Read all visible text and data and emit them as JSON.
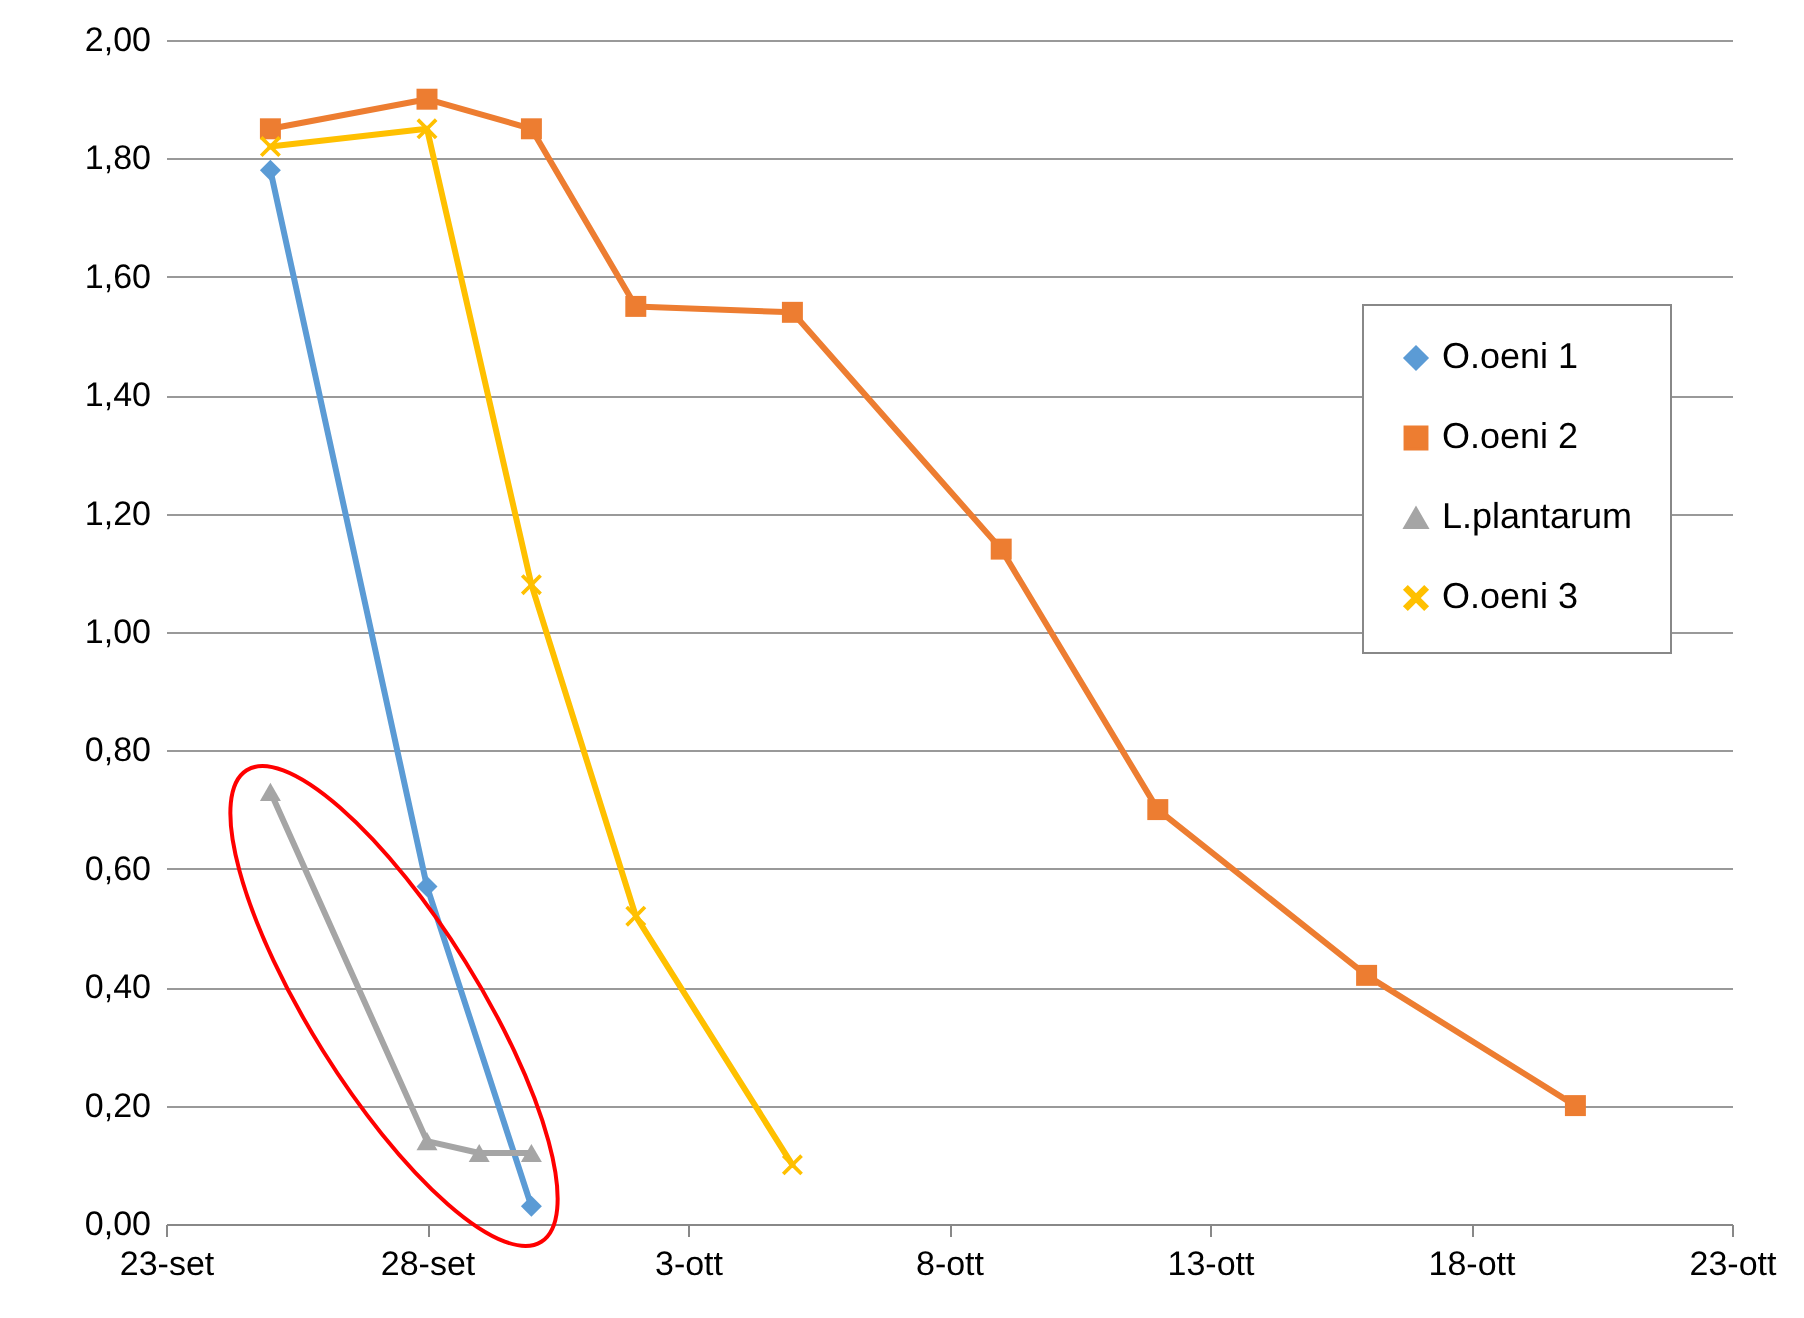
{
  "chart_data": {
    "type": "line",
    "xlim": [
      "--09-23",
      "--10-23"
    ],
    "xticks": [
      {
        "value": "--09-23",
        "label": "23-set"
      },
      {
        "value": "--09-28",
        "label": "28-set"
      },
      {
        "value": "--10-03",
        "label": "3-ott"
      },
      {
        "value": "--10-08",
        "label": "8-ott"
      },
      {
        "value": "--10-13",
        "label": "13-ott"
      },
      {
        "value": "--10-18",
        "label": "18-ott"
      },
      {
        "value": "--10-23",
        "label": "23-ott"
      }
    ],
    "ylim": [
      0,
      2
    ],
    "yticks": [
      {
        "value": 0,
        "label": "0,00"
      },
      {
        "value": 0.2,
        "label": "0,20"
      },
      {
        "value": 0.4,
        "label": "0,40"
      },
      {
        "value": 0.6,
        "label": "0,60"
      },
      {
        "value": 0.8,
        "label": "0,80"
      },
      {
        "value": 1,
        "label": "1,00"
      },
      {
        "value": 1.2,
        "label": "1,20"
      },
      {
        "value": 1.4,
        "label": "1,40"
      },
      {
        "value": 1.6,
        "label": "1,60"
      },
      {
        "value": 1.8,
        "label": "1,80"
      },
      {
        "value": 2,
        "label": "2,00"
      }
    ],
    "grid": "y",
    "legend": "right",
    "series": [
      {
        "name": "O.oeni 1",
        "color": "#5b9bd5",
        "marker": "diamond",
        "x": [
          "--09-25",
          "--09-28",
          "--09-30"
        ],
        "values": [
          1.78,
          0.57,
          0.03
        ]
      },
      {
        "name": "O.oeni 2",
        "color": "#ed7d31",
        "marker": "square",
        "x": [
          "--09-25",
          "--09-28",
          "--09-30",
          "--10-02",
          "--10-05",
          "--10-09",
          "--10-12",
          "--10-16",
          "--10-20"
        ],
        "values": [
          1.85,
          1.9,
          1.85,
          1.55,
          1.54,
          1.14,
          0.7,
          0.42,
          0.2
        ]
      },
      {
        "name": "L.plantarum",
        "color": "#a5a5a5",
        "marker": "triangle",
        "x": [
          "--09-25",
          "--09-28",
          "--09-29",
          "--09-30"
        ],
        "values": [
          0.73,
          0.14,
          0.12,
          0.12
        ]
      },
      {
        "name": "O.oeni 3",
        "color": "#ffc000",
        "marker": "cross",
        "x": [
          "--09-25",
          "--09-28",
          "--09-30",
          "--10-02",
          "--10-05"
        ],
        "values": [
          1.82,
          1.85,
          1.08,
          0.52,
          0.1
        ]
      }
    ]
  }
}
